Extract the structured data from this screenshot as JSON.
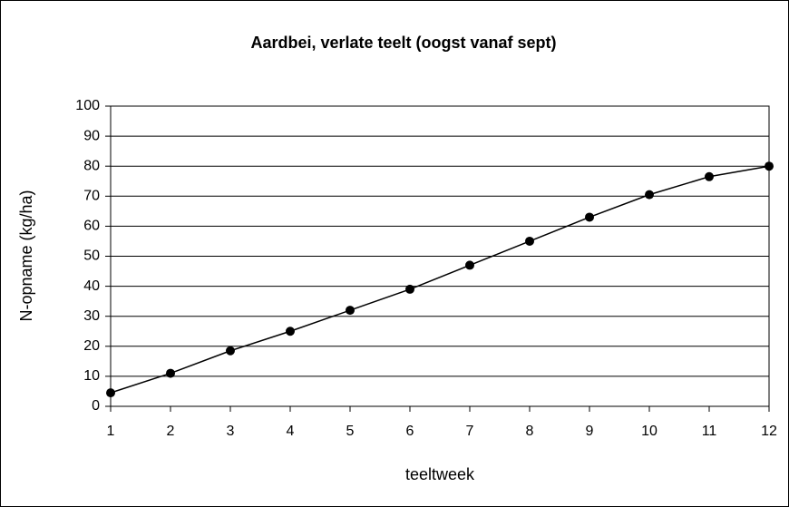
{
  "chart_data": {
    "type": "line",
    "title": "Aardbei, verlate teelt (oogst vanaf sept)",
    "x_label": "teeltweek",
    "y_label": "N-opname (kg/ha)",
    "x": [
      1,
      2,
      3,
      4,
      5,
      6,
      7,
      8,
      9,
      10,
      11,
      12
    ],
    "values": [
      4.5,
      11,
      18.5,
      25,
      32,
      39,
      47,
      55,
      63,
      70.5,
      76.5,
      80
    ],
    "color": "#000000",
    "xlim": [
      1,
      12
    ],
    "xticks": [
      1,
      2,
      3,
      4,
      5,
      6,
      7,
      8,
      9,
      10,
      11,
      12
    ],
    "ylim": [
      0,
      100
    ],
    "yticks": [
      0,
      10,
      20,
      30,
      40,
      50,
      60,
      70,
      80,
      90,
      100
    ],
    "grid": true
  }
}
